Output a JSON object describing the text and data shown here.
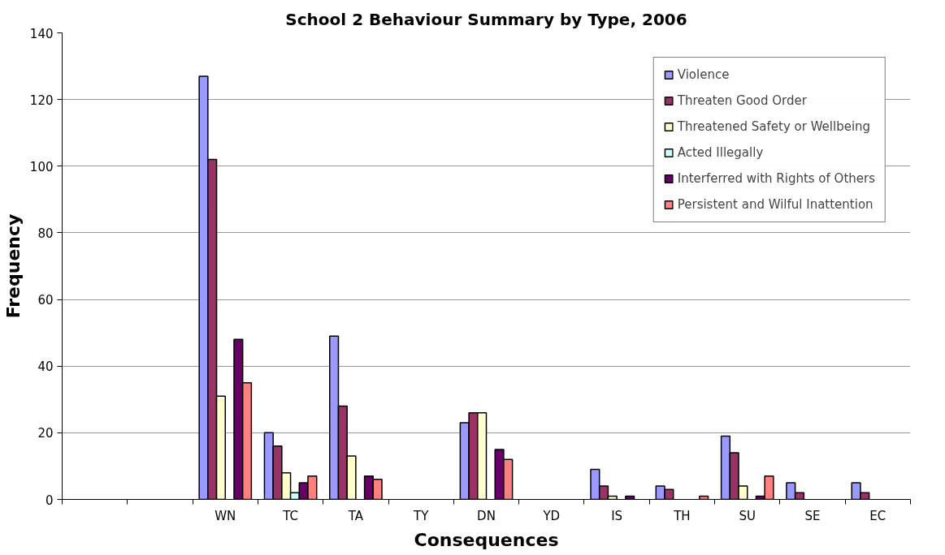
{
  "chart_data": {
    "type": "bar",
    "title": "School 2 Behaviour Summary by Type, 2006",
    "xlabel": "Consequences",
    "ylabel": "Frequency",
    "categories": [
      null,
      null,
      "WN",
      "TC",
      "TA",
      "TY",
      "DN",
      "YD",
      "IS",
      "TH",
      "SU",
      "SE",
      "EC"
    ],
    "series": [
      {
        "name": "Violence",
        "color": "#9999ff",
        "values": [
          0,
          0,
          127,
          20,
          49,
          0,
          23,
          0,
          9,
          4,
          19,
          5,
          5
        ]
      },
      {
        "name": "Threaten Good Order",
        "color": "#993366",
        "values": [
          0,
          0,
          102,
          16,
          28,
          0,
          26,
          0,
          4,
          3,
          14,
          2,
          2
        ]
      },
      {
        "name": "Threatened Safety or Wellbeing",
        "color": "#ffffcc",
        "values": [
          0,
          0,
          31,
          8,
          13,
          0,
          26,
          0,
          1,
          0,
          4,
          0,
          0
        ]
      },
      {
        "name": "Acted Illegally",
        "color": "#ccffff",
        "values": [
          0,
          0,
          0,
          2,
          0,
          0,
          0,
          0,
          0,
          0,
          0,
          0,
          0
        ]
      },
      {
        "name": "Interferred with Rights of Others",
        "color": "#660066",
        "values": [
          0,
          0,
          48,
          5,
          7,
          0,
          15,
          0,
          1,
          0,
          1,
          0,
          0
        ]
      },
      {
        "name": "Persistent and Wilful Inattention",
        "color": "#ff8080",
        "values": [
          0,
          0,
          35,
          7,
          6,
          0,
          12,
          0,
          0,
          1,
          7,
          0,
          0
        ]
      }
    ],
    "ylim": [
      0,
      140
    ],
    "yticks": [
      0,
      20,
      40,
      60,
      80,
      100,
      120,
      140
    ],
    "grid": "y",
    "legend": "top right"
  }
}
